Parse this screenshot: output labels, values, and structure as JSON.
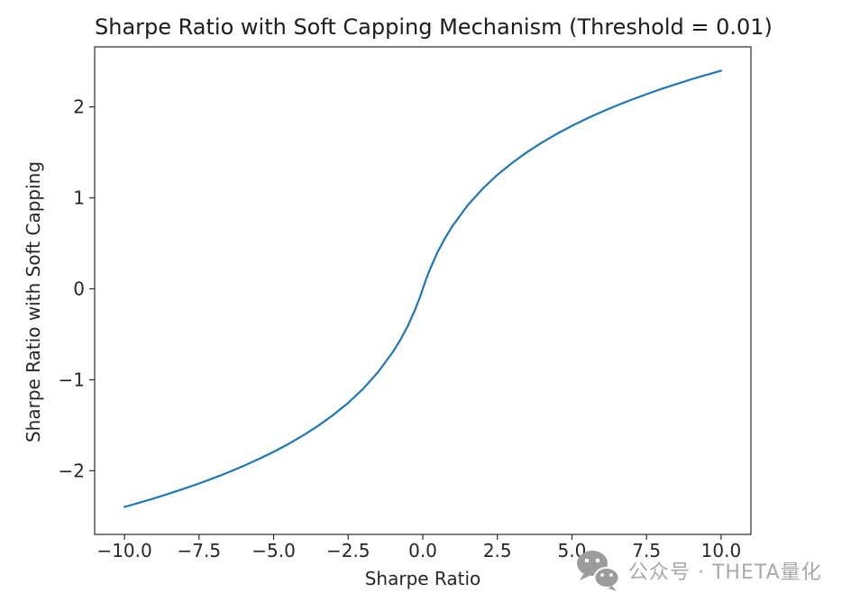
{
  "page": {
    "background": "#ffffff"
  },
  "watermark": {
    "icon": "wechat-icon",
    "text": "公众号 · THETA量化",
    "color": "#a8a8a8"
  },
  "chart_data": {
    "type": "line",
    "title": "Sharpe Ratio with Soft Capping Mechanism (Threshold = 0.01)",
    "xlabel": "Sharpe Ratio",
    "ylabel": "Sharpe Ratio with Soft Capping",
    "line_color": "#1f77b4",
    "line_width": 2.2,
    "background": "#ffffff",
    "grid": false,
    "legend": "none",
    "xlim": [
      -11,
      11
    ],
    "ylim": [
      -2.7,
      2.66
    ],
    "x_ticks": {
      "values": [
        -10,
        -7.5,
        -5,
        -2.5,
        0,
        2.5,
        5,
        7.5,
        10
      ],
      "labels": [
        "−10.0",
        "−7.5",
        "−5.0",
        "−2.5",
        "0.0",
        "2.5",
        "5.0",
        "7.5",
        "10.0"
      ]
    },
    "y_ticks": {
      "values": [
        -2,
        -1,
        0,
        1,
        2
      ],
      "labels": [
        "−2",
        "−1",
        "0",
        "1",
        "2"
      ]
    },
    "series": [
      {
        "name": "Sharpe Ratio with Soft Capping",
        "x": [
          -10,
          -9.5,
          -9,
          -8.5,
          -8,
          -7.5,
          -7,
          -6.5,
          -6,
          -5.5,
          -5,
          -4.5,
          -4,
          -3.5,
          -3,
          -2.5,
          -2,
          -1.5,
          -1,
          -0.75,
          -0.5,
          -0.25,
          -0.1,
          0,
          0.1,
          0.25,
          0.5,
          0.75,
          1,
          1.5,
          2,
          2.5,
          3,
          3.5,
          4,
          4.5,
          5,
          5.5,
          6,
          6.5,
          7,
          7.5,
          8,
          8.5,
          9,
          9.5,
          10
        ],
        "y": [
          -2.398,
          -2.351,
          -2.303,
          -2.251,
          -2.197,
          -2.14,
          -2.079,
          -2.015,
          -1.946,
          -1.872,
          -1.792,
          -1.705,
          -1.609,
          -1.504,
          -1.386,
          -1.253,
          -1.099,
          -0.916,
          -0.693,
          -0.56,
          -0.405,
          -0.223,
          -0.095,
          0,
          0.095,
          0.223,
          0.405,
          0.56,
          0.693,
          0.916,
          1.099,
          1.253,
          1.386,
          1.504,
          1.609,
          1.705,
          1.792,
          1.872,
          1.946,
          2.015,
          2.079,
          2.14,
          2.197,
          2.251,
          2.303,
          2.351,
          2.398
        ]
      }
    ]
  }
}
